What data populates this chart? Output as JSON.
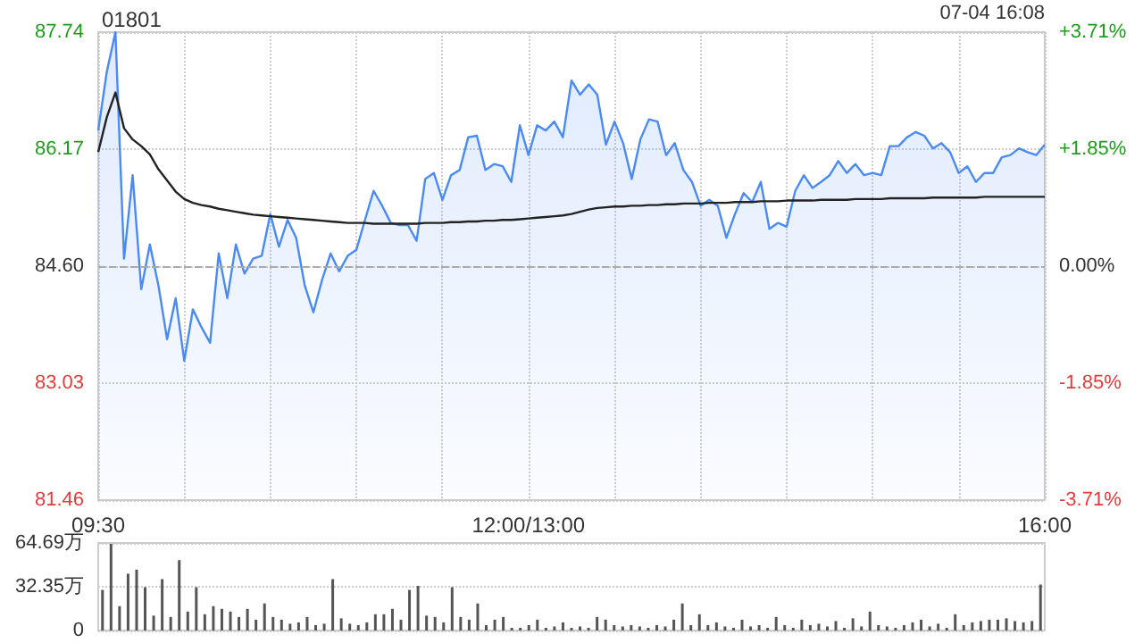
{
  "chart_data": [
    {
      "type": "line",
      "title": "01801",
      "annotations": [
        "07-04 16:08"
      ],
      "marker": "none",
      "grid": true,
      "categories": [
        "09:30",
        null,
        null,
        null,
        null,
        null,
        null,
        null,
        null,
        null,
        null,
        null,
        null,
        null,
        null,
        null,
        null,
        null,
        null,
        null,
        null,
        null,
        null,
        null,
        null,
        null,
        null,
        null,
        null,
        null,
        null,
        null,
        null,
        null,
        null,
        null,
        null,
        null,
        null,
        null,
        null,
        null,
        null,
        null,
        null,
        null,
        null,
        null,
        null,
        null,
        "12:00/13:00",
        null,
        null,
        null,
        null,
        null,
        null,
        null,
        null,
        null,
        null,
        null,
        null,
        null,
        null,
        null,
        null,
        null,
        null,
        null,
        null,
        null,
        null,
        null,
        null,
        null,
        null,
        null,
        null,
        null,
        null,
        null,
        null,
        null,
        null,
        null,
        null,
        null,
        null,
        null,
        null,
        null,
        null,
        null,
        null,
        null,
        null,
        null,
        null,
        null,
        null,
        null,
        null,
        null,
        null,
        null,
        null,
        null,
        null,
        null,
        "16:00"
      ],
      "ylim": [
        81.46,
        87.74
      ],
      "yticks": [
        81.46,
        83.03,
        {
          "value": 84.6,
          "label": "84.60"
        },
        86.17,
        87.74
      ],
      "y2lim": [
        -3.71,
        3.71
      ],
      "y2ticks": [
        {
          "value": -3.71,
          "label": "-3.71%"
        },
        {
          "value": -1.85,
          "label": "-1.85%"
        },
        {
          "value": 0,
          "label": "0.00%"
        },
        {
          "value": 1.85,
          "label": "+1.85%"
        },
        {
          "value": 3.71,
          "label": "+3.71%"
        }
      ],
      "ref_lines": [
        {
          "axis": "y",
          "value": 84.6,
          "color": "#aaaaaa",
          "line_style": "dashed"
        }
      ],
      "series": [
        {
          "type": "area",
          "color": "#4a8af4",
          "values": [
            86.42,
            87.21,
            87.74,
            84.7,
            85.82,
            84.29,
            84.89,
            84.34,
            83.62,
            84.17,
            83.33,
            84.02,
            83.78,
            83.57,
            84.77,
            84.17,
            84.89,
            84.5,
            84.7,
            84.74,
            85.3,
            84.86,
            85.22,
            84.98,
            84.34,
            83.98,
            84.41,
            84.77,
            84.53,
            84.74,
            84.82,
            85.22,
            85.61,
            85.41,
            85.18,
            85.15,
            85.15,
            84.94,
            85.77,
            85.85,
            85.49,
            85.82,
            85.89,
            86.33,
            86.35,
            85.89,
            85.97,
            85.94,
            85.73,
            86.49,
            86.09,
            86.49,
            86.42,
            86.54,
            86.33,
            87.09,
            86.9,
            87.04,
            86.9,
            86.23,
            86.54,
            86.25,
            85.77,
            86.3,
            86.57,
            86.54,
            86.09,
            86.25,
            85.89,
            85.73,
            85.41,
            85.49,
            85.41,
            84.98,
            85.3,
            85.58,
            85.46,
            85.73,
            85.1,
            85.18,
            85.13,
            85.61,
            85.82,
            85.65,
            85.73,
            85.82,
            86.01,
            85.85,
            85.97,
            85.82,
            85.85,
            85.82,
            86.21,
            86.21,
            86.33,
            86.4,
            86.35,
            86.18,
            86.25,
            86.13,
            85.85,
            85.94,
            85.73,
            85.85,
            85.85,
            86.06,
            86.09,
            86.18,
            86.13,
            86.09,
            86.23
          ]
        },
        {
          "type": "line",
          "color": "#222222",
          "values": [
            86.13,
            86.6,
            86.93,
            86.45,
            86.3,
            86.21,
            86.1,
            85.9,
            85.75,
            85.6,
            85.5,
            85.45,
            85.42,
            85.4,
            85.37,
            85.35,
            85.33,
            85.31,
            85.29,
            85.28,
            85.27,
            85.26,
            85.25,
            85.24,
            85.23,
            85.22,
            85.21,
            85.2,
            85.19,
            85.18,
            85.18,
            85.18,
            85.17,
            85.17,
            85.17,
            85.17,
            85.17,
            85.17,
            85.18,
            85.18,
            85.18,
            85.19,
            85.19,
            85.2,
            85.2,
            85.21,
            85.21,
            85.22,
            85.22,
            85.23,
            85.24,
            85.25,
            85.26,
            85.27,
            85.28,
            85.3,
            85.33,
            85.36,
            85.38,
            85.39,
            85.4,
            85.4,
            85.41,
            85.41,
            85.42,
            85.42,
            85.43,
            85.43,
            85.44,
            85.44,
            85.44,
            85.45,
            85.45,
            85.45,
            85.46,
            85.46,
            85.46,
            85.47,
            85.47,
            85.47,
            85.48,
            85.48,
            85.48,
            85.48,
            85.49,
            85.49,
            85.49,
            85.49,
            85.5,
            85.5,
            85.5,
            85.5,
            85.51,
            85.51,
            85.51,
            85.51,
            85.51,
            85.52,
            85.52,
            85.52,
            85.52,
            85.52,
            85.52,
            85.53,
            85.53,
            85.53,
            85.53,
            85.53,
            85.53,
            85.53,
            85.53
          ]
        }
      ]
    },
    {
      "type": "bar",
      "color": "#555555",
      "grid": "y",
      "tick_labels": "y",
      "categories": [
        null,
        null,
        null,
        null,
        null,
        null,
        null,
        null,
        null,
        null,
        null,
        null,
        null,
        null,
        null,
        null,
        null,
        null,
        null,
        null,
        null,
        null,
        null,
        null,
        null,
        null,
        null,
        null,
        null,
        null,
        null,
        null,
        null,
        null,
        null,
        null,
        null,
        null,
        null,
        null,
        null,
        null,
        null,
        null,
        null,
        null,
        null,
        null,
        null,
        null,
        null,
        null,
        null,
        null,
        null,
        null,
        null,
        null,
        null,
        null,
        null,
        null,
        null,
        null,
        null,
        null,
        null,
        null,
        null,
        null,
        null,
        null,
        null,
        null,
        null,
        null,
        null,
        null,
        null,
        null,
        null,
        null,
        null,
        null,
        null,
        null,
        null,
        null,
        null,
        null,
        null,
        null,
        null,
        null,
        null,
        null,
        null,
        null,
        null,
        null,
        null,
        null,
        null,
        null,
        null,
        null,
        null,
        null,
        null,
        null,
        null
      ],
      "ylim": [
        0,
        64.69
      ],
      "yticks": [
        0,
        {
          "value": 32.35,
          "label": "32.35万"
        },
        {
          "value": 64.69,
          "label": "64.69万"
        }
      ],
      "values": [
        30,
        64,
        18,
        42,
        45,
        32,
        11,
        38,
        10,
        52,
        14,
        32,
        12,
        18,
        16,
        14,
        10,
        16,
        8,
        20,
        10,
        8,
        5,
        6,
        10,
        4,
        5,
        38,
        9,
        5,
        4,
        6,
        12,
        12,
        16,
        8,
        30,
        33,
        11,
        10,
        6,
        32,
        10,
        8,
        20,
        4,
        8,
        10,
        2,
        2,
        4,
        8,
        2,
        3,
        6,
        2,
        3,
        2,
        10,
        8,
        4,
        3,
        4,
        3,
        2,
        4,
        3,
        8,
        20,
        4,
        12,
        4,
        6,
        3,
        2,
        8,
        3,
        4,
        2,
        10,
        4,
        2,
        8,
        4,
        5,
        3,
        7,
        2,
        9,
        3,
        14,
        4,
        3,
        2,
        4,
        6,
        8,
        3,
        5,
        2,
        12,
        4,
        6,
        7,
        8,
        8,
        9,
        7,
        6,
        7,
        34
      ]
    }
  ]
}
